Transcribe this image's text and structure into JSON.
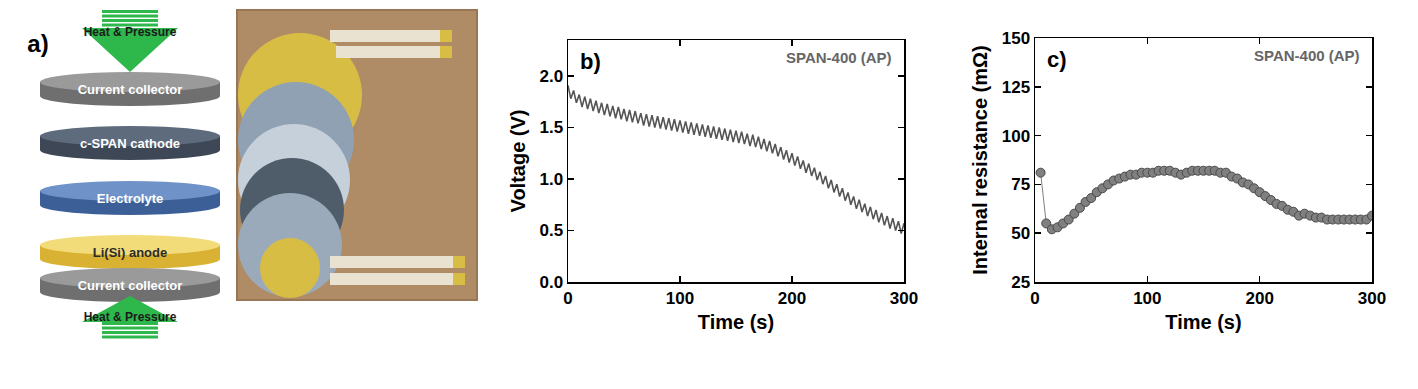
{
  "diagram": {
    "label": "a)",
    "arrows": [
      "Heat & Pressure",
      "Heat & Pressure"
    ],
    "layers": [
      "Current collector",
      "c-SPAN cathode",
      "Electrolyte",
      "Li(Si) anode",
      "Current collector"
    ]
  },
  "chart_data": [
    {
      "type": "line",
      "annotations": [
        "b)",
        "SPAN-400 (AP)"
      ],
      "xlabel": "Time (s)",
      "ylabel": "Voltage (V)",
      "color": "#555555",
      "grid": false,
      "xlim": [
        0,
        300
      ],
      "xticks": [
        0,
        100,
        200,
        300
      ],
      "ylim": [
        0,
        2.35
      ],
      "yticks": [
        {
          "value": 0,
          "label": "0.0"
        },
        {
          "value": 0.5,
          "label": "0.5"
        },
        {
          "value": 1,
          "label": "1.0"
        },
        {
          "value": 1.5,
          "label": "1.5"
        },
        {
          "value": 2,
          "label": "2.0"
        }
      ],
      "x": [
        0,
        2.5,
        5,
        7.5,
        10,
        12.5,
        15,
        17.5,
        20,
        22.5,
        25,
        27.5,
        30,
        32.5,
        35,
        37.5,
        40,
        42.5,
        45,
        47.5,
        50,
        52.5,
        55,
        57.5,
        60,
        62.5,
        65,
        67.5,
        70,
        72.5,
        75,
        77.5,
        80,
        82.5,
        85,
        87.5,
        90,
        92.5,
        95,
        97.5,
        100,
        102.5,
        105,
        107.5,
        110,
        112.5,
        115,
        117.5,
        120,
        122.5,
        125,
        127.5,
        130,
        132.5,
        135,
        137.5,
        140,
        142.5,
        145,
        147.5,
        150,
        152.5,
        155,
        157.5,
        160,
        162.5,
        165,
        167.5,
        170,
        172.5,
        175,
        177.5,
        180,
        182.5,
        185,
        187.5,
        190,
        192.5,
        195,
        197.5,
        200,
        202.5,
        205,
        207.5,
        210,
        212.5,
        215,
        217.5,
        220,
        222.5,
        225,
        227.5,
        230,
        232.5,
        235,
        237.5,
        240,
        242.5,
        245,
        247.5,
        250,
        252.5,
        255,
        257.5,
        260,
        262.5,
        265,
        267.5,
        270,
        272.5,
        275,
        277.5,
        280,
        282.5,
        285,
        287.5,
        290,
        292.5,
        295,
        297.5,
        300
      ],
      "values": [
        1.91,
        1.78,
        1.86,
        1.74,
        1.82,
        1.7,
        1.8,
        1.68,
        1.78,
        1.66,
        1.76,
        1.64,
        1.74,
        1.62,
        1.73,
        1.61,
        1.71,
        1.59,
        1.7,
        1.58,
        1.68,
        1.56,
        1.67,
        1.55,
        1.66,
        1.54,
        1.64,
        1.52,
        1.63,
        1.51,
        1.62,
        1.5,
        1.61,
        1.49,
        1.6,
        1.48,
        1.59,
        1.47,
        1.58,
        1.46,
        1.57,
        1.45,
        1.56,
        1.44,
        1.55,
        1.43,
        1.54,
        1.42,
        1.53,
        1.41,
        1.52,
        1.4,
        1.51,
        1.39,
        1.5,
        1.38,
        1.49,
        1.37,
        1.48,
        1.36,
        1.47,
        1.35,
        1.46,
        1.34,
        1.44,
        1.32,
        1.43,
        1.31,
        1.41,
        1.29,
        1.39,
        1.27,
        1.37,
        1.25,
        1.34,
        1.22,
        1.31,
        1.19,
        1.28,
        1.16,
        1.25,
        1.13,
        1.22,
        1.1,
        1.18,
        1.06,
        1.15,
        1.03,
        1.11,
        0.99,
        1.07,
        0.95,
        1.03,
        0.91,
        0.99,
        0.87,
        0.95,
        0.83,
        0.91,
        0.79,
        0.87,
        0.75,
        0.83,
        0.71,
        0.8,
        0.68,
        0.76,
        0.64,
        0.73,
        0.61,
        0.7,
        0.58,
        0.67,
        0.55,
        0.64,
        0.52,
        0.62,
        0.5,
        0.59,
        0.47,
        0.57
      ]
    },
    {
      "type": "line",
      "marker": "circle",
      "annotations": [
        "c)",
        "SPAN-400 (AP)"
      ],
      "xlabel": "Time (s)",
      "ylabel": "Internal resistance (mΩ)",
      "color": "#808080",
      "grid": false,
      "xlim": [
        0,
        300
      ],
      "xticks": [
        0,
        100,
        200,
        300
      ],
      "ylim": [
        25,
        150
      ],
      "yticks": [
        25,
        50,
        75,
        100,
        125,
        150
      ],
      "x": [
        5,
        10,
        15,
        20,
        25,
        30,
        35,
        40,
        45,
        50,
        55,
        60,
        65,
        70,
        75,
        80,
        85,
        90,
        95,
        100,
        105,
        110,
        115,
        120,
        125,
        130,
        135,
        140,
        145,
        150,
        155,
        160,
        165,
        170,
        175,
        180,
        185,
        190,
        195,
        200,
        205,
        210,
        215,
        220,
        225,
        230,
        235,
        240,
        245,
        250,
        255,
        260,
        265,
        270,
        275,
        280,
        285,
        290,
        295,
        300
      ],
      "values": [
        81,
        55,
        52,
        53,
        55,
        57,
        60,
        63,
        66,
        68,
        71,
        73,
        75,
        77,
        78,
        79,
        80,
        80,
        81,
        81,
        81,
        82,
        82,
        82,
        81,
        80,
        81,
        82,
        82,
        82,
        82,
        82,
        81,
        81,
        79,
        78,
        76,
        75,
        73,
        71,
        69,
        67,
        65,
        64,
        62,
        61,
        59,
        60,
        59,
        58,
        58,
        57,
        57,
        57,
        57,
        57,
        57,
        57,
        57,
        59
      ]
    }
  ]
}
